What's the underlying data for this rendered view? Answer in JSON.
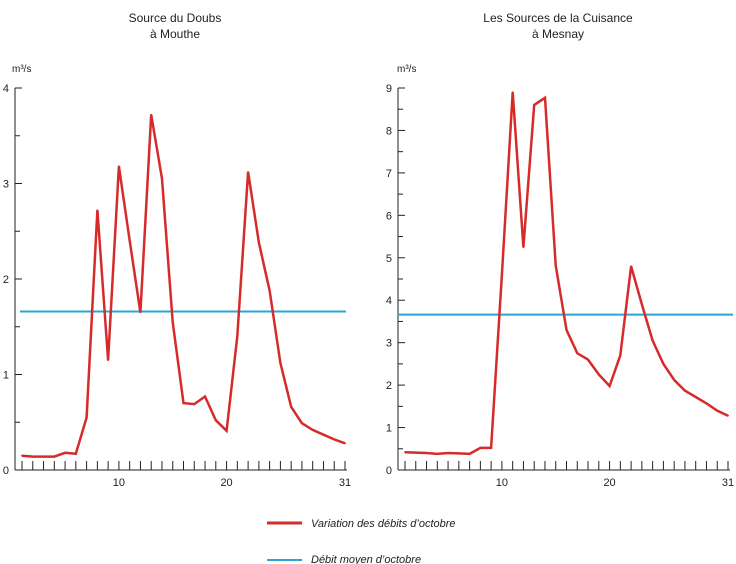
{
  "colors": {
    "variation": "#d62b2b",
    "mean": "#2aa5d6",
    "axis": "#222222"
  },
  "legend": {
    "variation_label": "Variation des débits d’octobre",
    "mean_label": "Débit moyen d’octobre"
  },
  "chart_data": [
    {
      "type": "line",
      "title": "Source du Doubs",
      "subtitle": "à Mouthe",
      "unit": "m³/s",
      "xlim": [
        1,
        31
      ],
      "ylim": [
        0,
        4
      ],
      "yticks": [
        0,
        1,
        2,
        3,
        4
      ],
      "xticks_labeled": [
        10,
        20,
        31
      ],
      "series": [
        {
          "name": "Variation des débits d’octobre",
          "x": [
            1,
            2,
            3,
            4,
            5,
            6,
            7,
            8,
            9,
            10,
            11,
            12,
            13,
            14,
            15,
            16,
            17,
            18,
            19,
            20,
            21,
            22,
            23,
            24,
            25,
            26,
            27,
            28,
            29,
            30,
            31
          ],
          "values": [
            0.15,
            0.14,
            0.14,
            0.14,
            0.18,
            0.17,
            0.55,
            2.72,
            1.15,
            3.18,
            2.4,
            1.65,
            3.72,
            3.05,
            1.55,
            0.7,
            0.69,
            0.77,
            0.52,
            0.41,
            1.4,
            3.12,
            2.38,
            1.88,
            1.12,
            0.66,
            0.49,
            0.42,
            0.37,
            0.32,
            0.28
          ]
        },
        {
          "name": "Débit moyen d’octobre",
          "constant": 1.66
        }
      ]
    },
    {
      "type": "line",
      "title": "Les Sources de la Cuisance",
      "subtitle": "à Mesnay",
      "unit": "m³/s",
      "xlim": [
        1,
        31
      ],
      "ylim": [
        0,
        9
      ],
      "yticks": [
        0,
        1,
        2,
        3,
        4,
        5,
        6,
        7,
        8,
        9
      ],
      "xticks_labeled": [
        10,
        20,
        31
      ],
      "series": [
        {
          "name": "Variation des débits d’octobre",
          "x": [
            1,
            2,
            3,
            4,
            5,
            6,
            7,
            8,
            9,
            10,
            11,
            12,
            13,
            14,
            15,
            16,
            17,
            18,
            19,
            20,
            21,
            22,
            23,
            24,
            25,
            26,
            27,
            28,
            29,
            30,
            31
          ],
          "values": [
            0.42,
            0.41,
            0.4,
            0.38,
            0.4,
            0.39,
            0.38,
            0.52,
            0.52,
            4.6,
            8.9,
            5.25,
            8.6,
            8.77,
            4.82,
            3.3,
            2.75,
            2.6,
            2.25,
            1.98,
            2.7,
            4.8,
            3.9,
            3.05,
            2.5,
            2.12,
            1.87,
            1.72,
            1.57,
            1.4,
            1.28
          ]
        },
        {
          "name": "Débit moyen d’octobre",
          "constant": 3.66
        }
      ]
    }
  ]
}
